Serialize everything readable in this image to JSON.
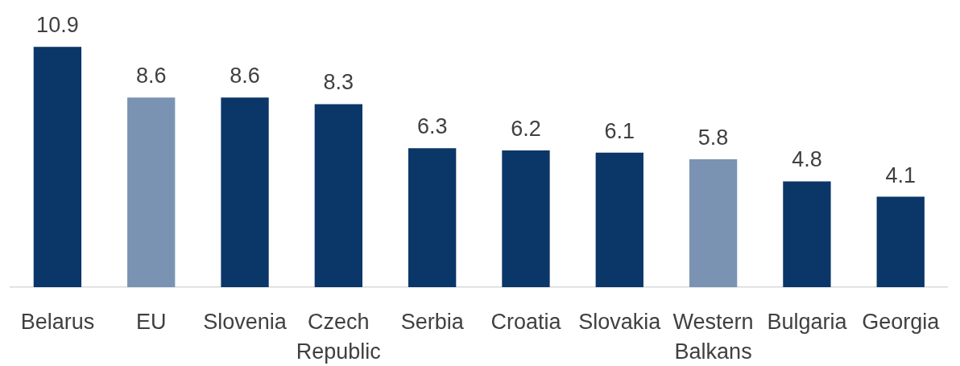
{
  "chart_data": {
    "type": "bar",
    "categories": [
      "Belarus",
      "EU",
      "Slovenia",
      "Czech Republic",
      "Serbia",
      "Croatia",
      "Slovakia",
      "Western Balkans",
      "Bulgaria",
      "Georgia"
    ],
    "values": [
      10.9,
      8.6,
      8.6,
      8.3,
      6.3,
      6.2,
      6.1,
      5.8,
      4.8,
      4.1
    ],
    "colors": [
      "#0b3668",
      "#7b93b3",
      "#0b3668",
      "#0b3668",
      "#0b3668",
      "#0b3668",
      "#0b3668",
      "#7b93b3",
      "#0b3668",
      "#0b3668"
    ],
    "data_labels": true
  }
}
